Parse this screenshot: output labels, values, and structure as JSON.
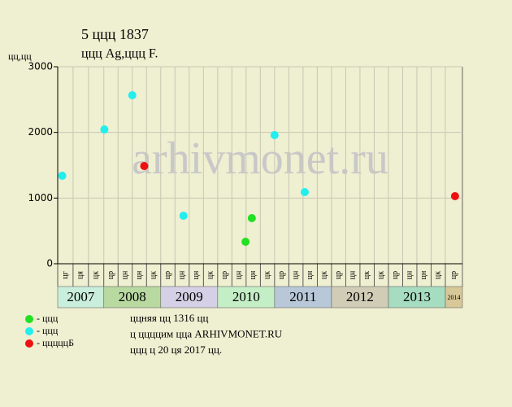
{
  "chart_data": {
    "type": "scatter",
    "title": "5 ццц 1837",
    "subtitle": "ццц Ag,ццц F.",
    "y_label": "цц,цц",
    "watermark": "arhivmonet.ru",
    "xlim": [
      2007.19,
      2014.3
    ],
    "ylim": [
      0,
      3000
    ],
    "yticks": [
      0,
      1000,
      2000,
      3000
    ],
    "grid": true,
    "series": [
      {
        "name": "- ццц",
        "color": "#22e022",
        "x": [
          2010.49,
          2010.6
        ],
        "values": [
          335,
          694
        ]
      },
      {
        "name": "- ццц",
        "color": "#22eeee",
        "x": [
          2007.27,
          2008.01,
          2008.5,
          2009.4,
          2011.0,
          2011.53
        ],
        "values": [
          1340,
          2045,
          2566,
          731,
          1959,
          1091
        ]
      },
      {
        "name": "- цццццБ",
        "color": "#ee1111",
        "x": [
          2008.71,
          2014.17
        ],
        "values": [
          1488,
          1029
        ]
      }
    ],
    "bands": [
      {
        "label": "2007",
        "x": [
          2007.19,
          2008
        ],
        "color": "#c9eedc",
        "columns": [
          "цг",
          "ця",
          "цк"
        ]
      },
      {
        "label": "2008",
        "x": [
          2008,
          2009
        ],
        "color": "#b8d9a0",
        "columns": [
          "цр",
          "цн",
          "цн",
          "цк"
        ]
      },
      {
        "label": "2009",
        "x": [
          2009,
          2010
        ],
        "color": "#d6d0e6",
        "columns": [
          "цр",
          "цн",
          "цн",
          "цк"
        ]
      },
      {
        "label": "2010",
        "x": [
          2010,
          2011
        ],
        "color": "#c4eec6",
        "columns": [
          "цр",
          "цн",
          "цн",
          "цк"
        ]
      },
      {
        "label": "2011",
        "x": [
          2011,
          2012
        ],
        "color": "#b8c8d8",
        "columns": [
          "цр",
          "цн",
          "цн",
          "цк"
        ]
      },
      {
        "label": "2012",
        "x": [
          2012,
          2013
        ],
        "color": "#d0ccb6",
        "columns": [
          "цр",
          "цн",
          "цк",
          "цк"
        ]
      },
      {
        "label": "2013",
        "x": [
          2013,
          2014
        ],
        "color": "#a6dcbf",
        "columns": [
          "цр",
          "цн",
          "цн",
          "цк"
        ]
      },
      {
        "label": "2014",
        "x": [
          2014,
          2014.3
        ],
        "color": "#d8c898",
        "columns": [
          "цр"
        ]
      }
    ],
    "footer": [
      "ццняя цц 1316 цц",
      "ц ццццим цца ARHIVMONET.RU",
      "ццц ц 20 ця 2017 цц."
    ]
  }
}
